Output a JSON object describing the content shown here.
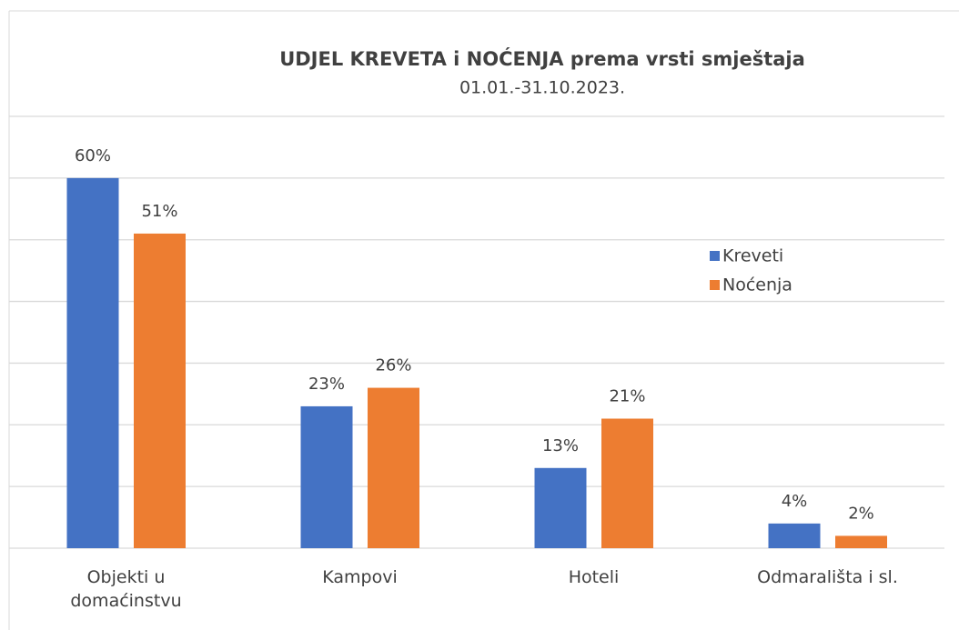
{
  "chart_data": {
    "type": "bar",
    "title": "UDJEL KREVETA i NOĆENJA prema vrsti smještaja",
    "subtitle": "01.01.-31.10.2023.",
    "categories": [
      "Objekti u domaćinstvu",
      "Kampovi",
      "Hoteli",
      "Odmarališta i sl."
    ],
    "series": [
      {
        "name": "Kreveti",
        "color": "#4472c4",
        "values": [
          60,
          23,
          13,
          4
        ],
        "value_labels": [
          "60%",
          "23%",
          "13%",
          "4%"
        ]
      },
      {
        "name": "Noćenja",
        "color": "#ed7d31",
        "values": [
          51,
          26,
          21,
          2
        ],
        "value_labels": [
          "51%",
          "26%",
          "21%",
          "2%"
        ]
      }
    ],
    "ylim": [
      0,
      70
    ],
    "yticks": [
      0,
      10,
      20,
      30,
      40,
      50,
      60,
      70
    ],
    "grid": true,
    "legend": "right"
  }
}
